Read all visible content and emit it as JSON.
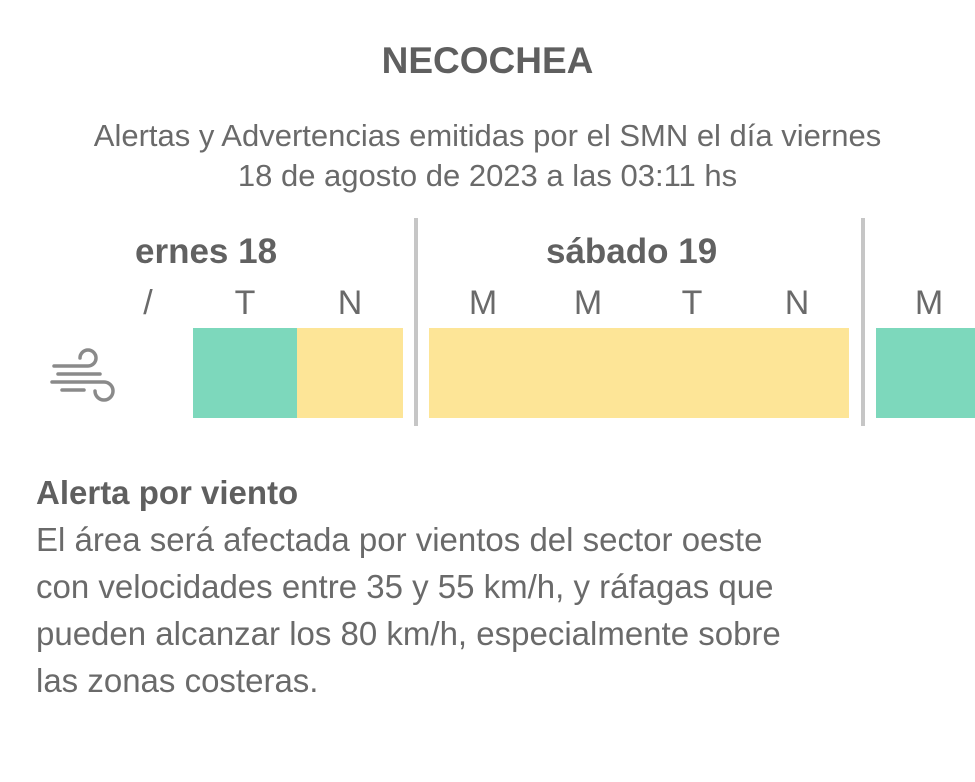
{
  "header": {
    "title": "NECOCHEA",
    "subtitle_line1": "Alertas y Advertencias emitidas por el SMN el día viernes",
    "subtitle_line2": "18 de agosto de 2023 a las 03:11 hs"
  },
  "timeline": {
    "days": [
      {
        "label": "ernes 18"
      },
      {
        "label": "sábado 19"
      }
    ],
    "periods": [
      "M",
      "T",
      "N",
      "M",
      "M",
      "T",
      "N",
      "M"
    ],
    "partial_first_period": "/",
    "hazard_icon": "wind-icon",
    "colors": {
      "green": "#7dd8bc",
      "yellow": "#fde597",
      "divider": "#c6c6c6"
    },
    "segments": [
      {
        "level": "green"
      },
      {
        "level": "yellow"
      },
      {
        "level": "yellow"
      },
      {
        "level": "green"
      }
    ]
  },
  "alert": {
    "title": "Alerta por viento",
    "line1": "El área será afectada por vientos del sector oeste",
    "line2": "con velocidades entre 35 y 55 km/h, y ráfagas que",
    "line3": "pueden alcanzar los 80 km/h, especialmente sobre",
    "line4": "las zonas costeras."
  }
}
